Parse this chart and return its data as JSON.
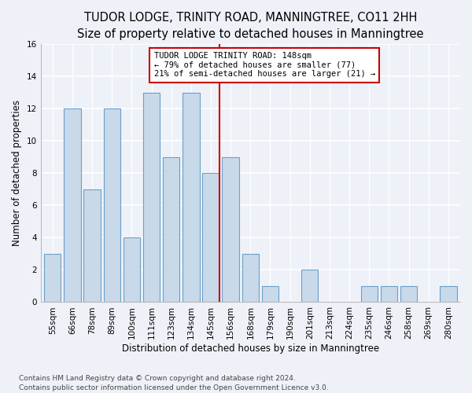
{
  "title": "TUDOR LODGE, TRINITY ROAD, MANNINGTREE, CO11 2HH",
  "subtitle": "Size of property relative to detached houses in Manningtree",
  "xlabel": "Distribution of detached houses by size in Manningtree",
  "ylabel": "Number of detached properties",
  "categories": [
    "55sqm",
    "66sqm",
    "78sqm",
    "89sqm",
    "100sqm",
    "111sqm",
    "123sqm",
    "134sqm",
    "145sqm",
    "156sqm",
    "168sqm",
    "179sqm",
    "190sqm",
    "201sqm",
    "213sqm",
    "224sqm",
    "235sqm",
    "246sqm",
    "258sqm",
    "269sqm",
    "280sqm"
  ],
  "values": [
    3,
    12,
    7,
    12,
    4,
    13,
    9,
    13,
    8,
    9,
    3,
    1,
    0,
    2,
    0,
    0,
    1,
    1,
    1,
    0,
    1
  ],
  "bar_color": "#c8d9ea",
  "bar_edge_color": "#6aa0c8",
  "vline_x_index": 8,
  "vline_color": "#cc0000",
  "annotation_text": "TUDOR LODGE TRINITY ROAD: 148sqm\n← 79% of detached houses are smaller (77)\n21% of semi-detached houses are larger (21) →",
  "ylim": [
    0,
    16
  ],
  "yticks": [
    0,
    2,
    4,
    6,
    8,
    10,
    12,
    14,
    16
  ],
  "footer": "Contains HM Land Registry data © Crown copyright and database right 2024.\nContains public sector information licensed under the Open Government Licence v3.0.",
  "bg_color": "#eef2f8",
  "plot_bg_color": "#eef2f8",
  "title_fontsize": 10.5,
  "subtitle_fontsize": 9.5,
  "label_fontsize": 8.5,
  "tick_fontsize": 7.5,
  "annotation_fontsize": 7.5,
  "footer_fontsize": 6.5
}
